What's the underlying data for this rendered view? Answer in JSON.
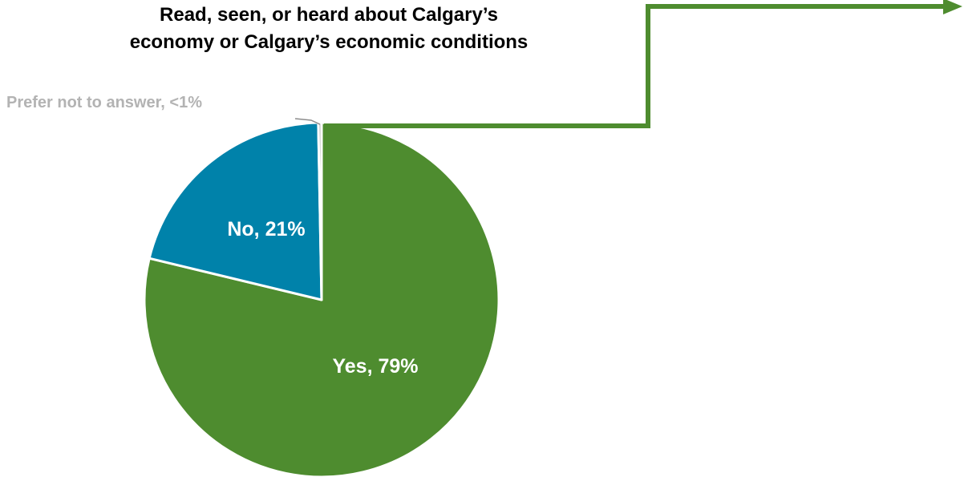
{
  "chart_data": {
    "type": "pie",
    "title_lines": [
      "Read, seen, or heard about Calgary’s",
      "economy or Calgary’s economic conditions"
    ],
    "slices": [
      {
        "label": "Yes",
        "value": 79,
        "value_text": "79%",
        "display": "Yes, 79%",
        "color": "#4e8c2f"
      },
      {
        "label": "No",
        "value": 21,
        "value_text": "21%",
        "display": "No, 21%",
        "color": "#0082aa"
      },
      {
        "label": "Prefer not to answer",
        "value": 0.3,
        "value_text": "<1%",
        "display": "Prefer not to answer, <1%",
        "color": "#b3b3b3"
      }
    ],
    "start_angle": "12 o'clock",
    "direction": "clockwise",
    "legend": "none",
    "callout_arrow_color": "#4e8c2f"
  }
}
